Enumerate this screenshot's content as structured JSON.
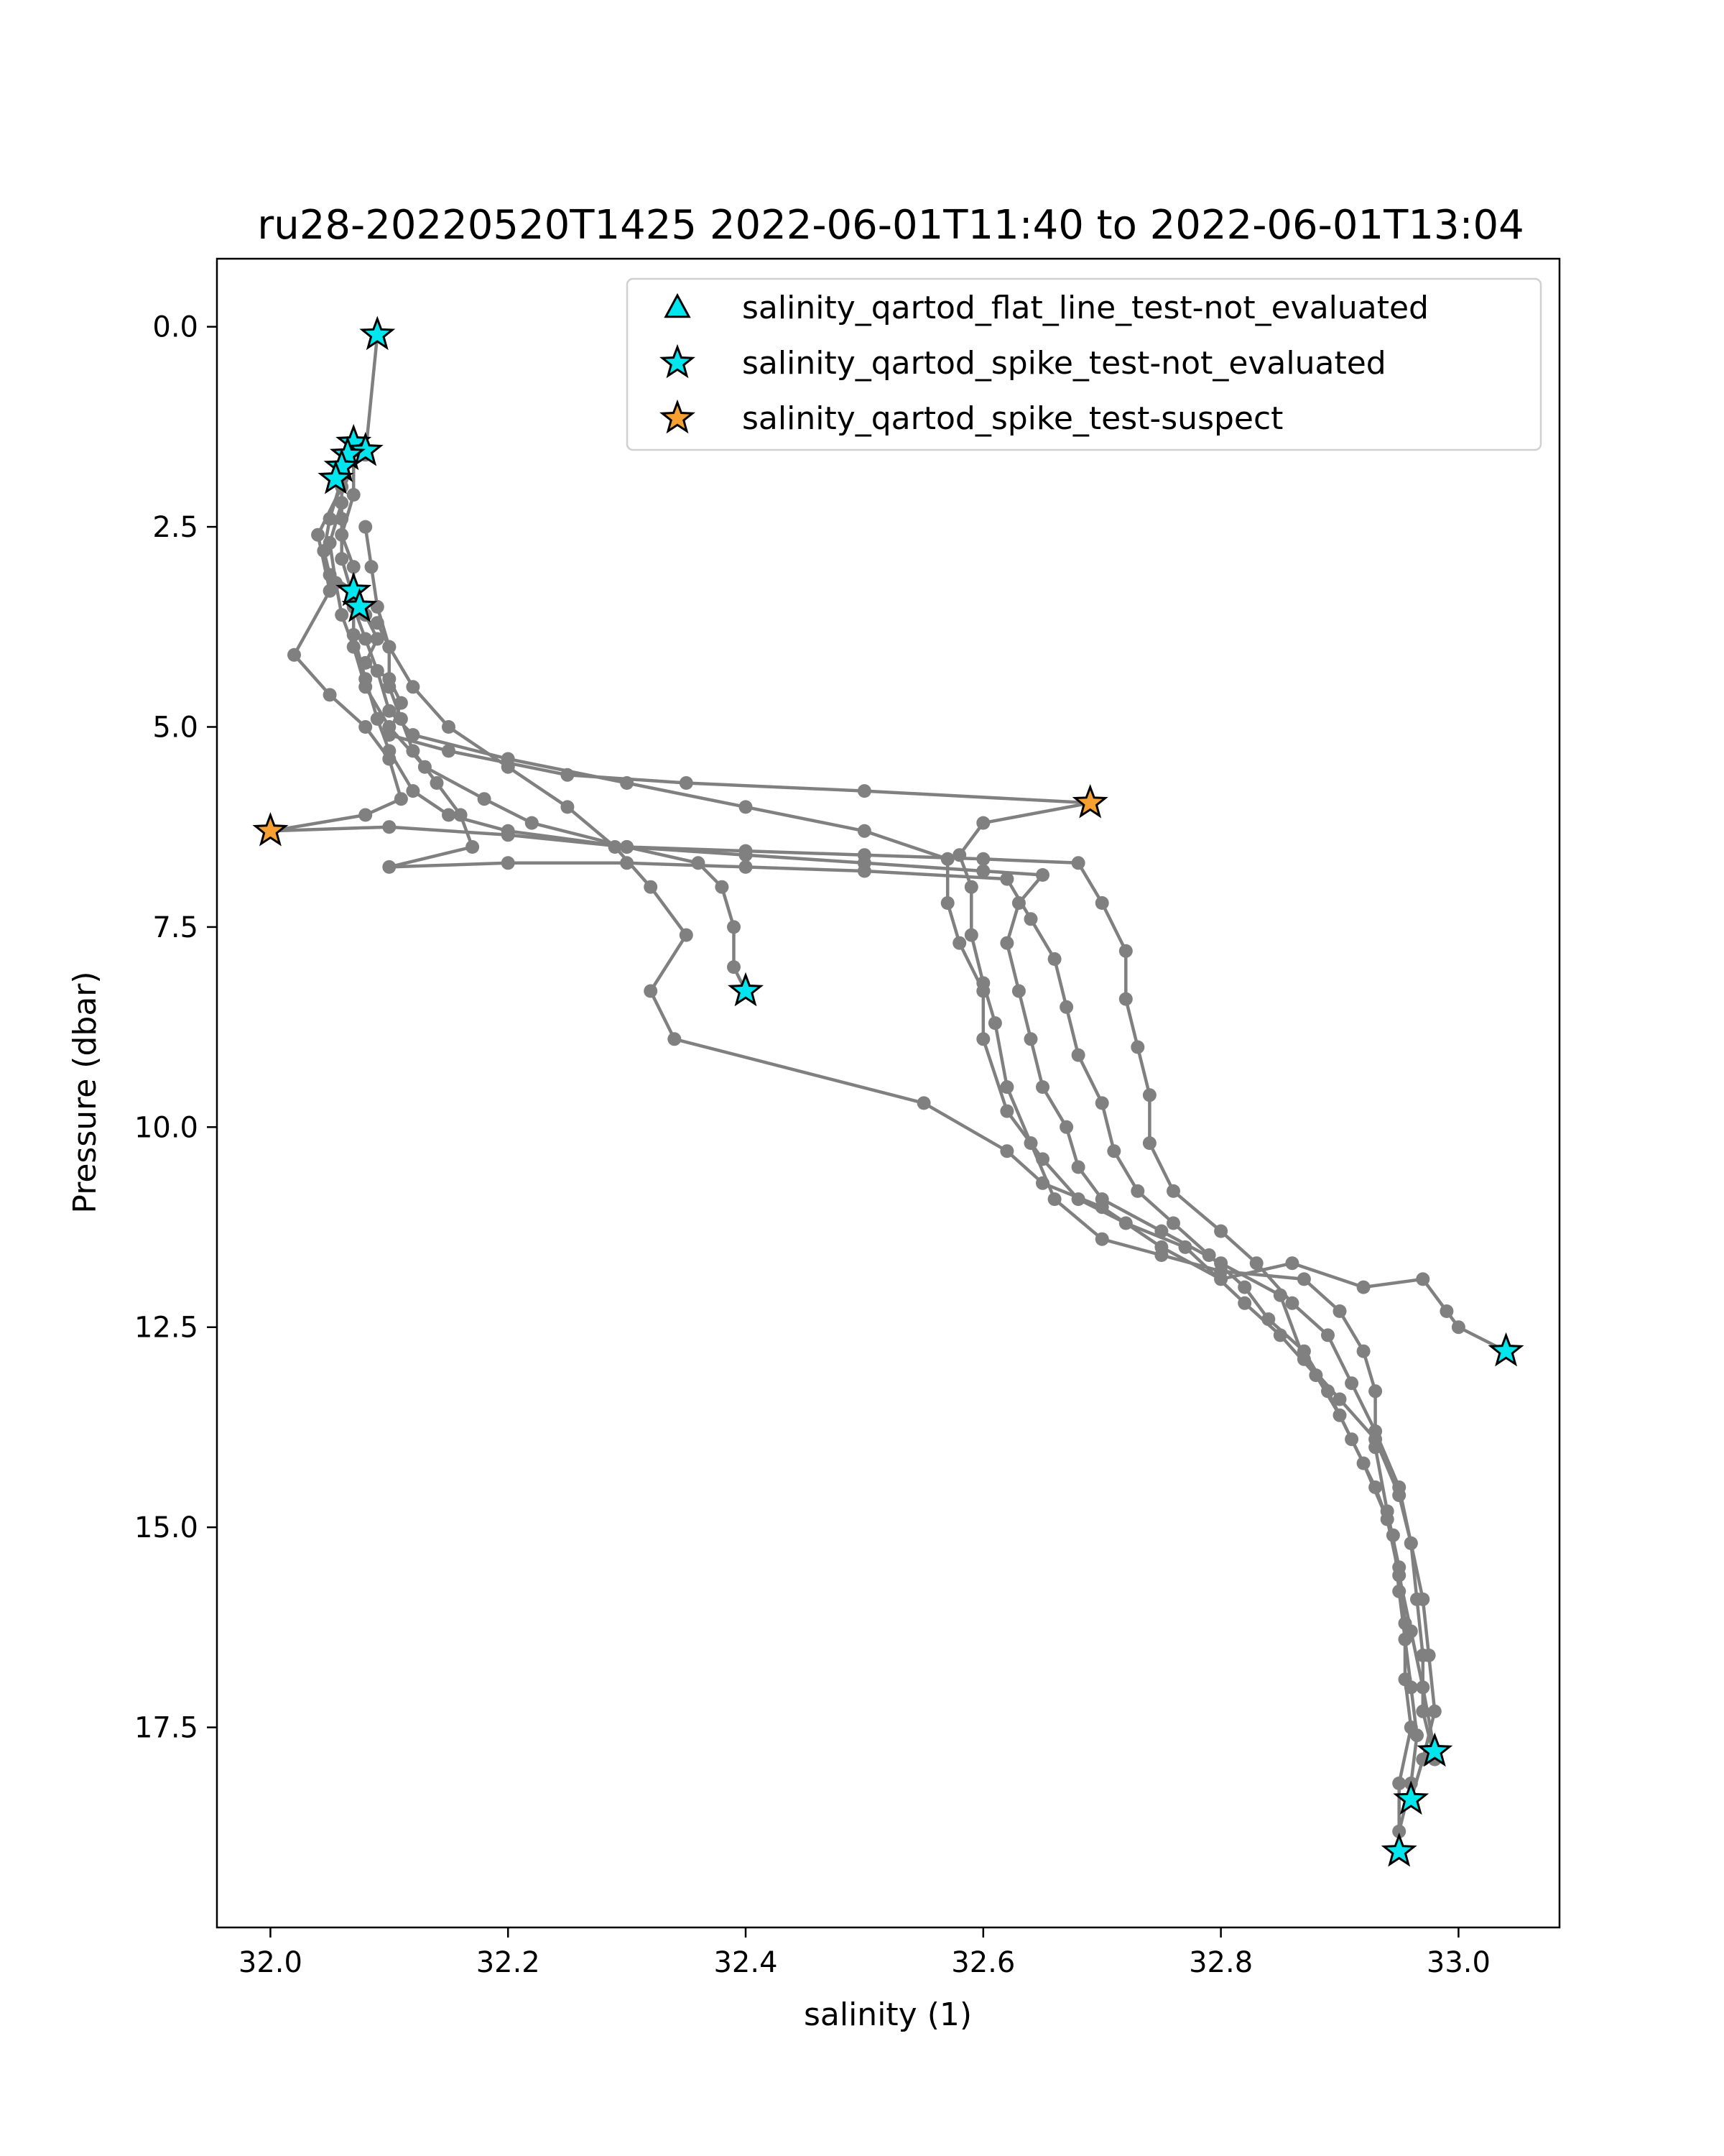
{
  "chart_data": {
    "type": "scatter",
    "title": "ru28-20220520T1425 2022-06-01T11:40 to 2022-06-01T13:04",
    "xlabel": "salinity (1)",
    "ylabel": "Pressure (dbar)",
    "xlim": [
      31.955,
      33.085
    ],
    "ylim": [
      20.0,
      -0.85
    ],
    "y_inverted": true,
    "grid": false,
    "legend_position": "top-right",
    "xticks": [
      "32.0",
      "32.2",
      "32.4",
      "32.6",
      "32.8",
      "33.0"
    ],
    "xtick_values": [
      32.0,
      32.2,
      32.4,
      32.6,
      32.8,
      33.0
    ],
    "yticks": [
      "0.0",
      "2.5",
      "5.0",
      "7.5",
      "10.0",
      "12.5",
      "15.0",
      "17.5"
    ],
    "ytick_values": [
      0.0,
      2.5,
      5.0,
      7.5,
      10.0,
      12.5,
      15.0,
      17.5
    ],
    "colors": {
      "profile_line": "#808080",
      "not_evaluated": "#00e5ee",
      "suspect": "#f5a030",
      "marker_edge": "#000000"
    },
    "series": [
      {
        "name": "profile",
        "style": "line-with-dots",
        "segments": [
          [
            [
              32.09,
              0.1
            ],
            [
              32.08,
              1.6
            ],
            [
              32.07,
              1.5
            ],
            [
              32.06,
              1.9
            ],
            [
              32.05,
              2.4
            ],
            [
              32.045,
              2.8
            ],
            [
              32.05,
              3.1
            ],
            [
              32.07,
              3.3
            ],
            [
              32.08,
              3.6
            ],
            [
              32.09,
              3.9
            ],
            [
              32.08,
              4.2
            ],
            [
              32.1,
              4.4
            ],
            [
              32.11,
              4.7
            ],
            [
              32.1,
              5.1
            ],
            [
              32.15,
              5.3
            ],
            [
              32.25,
              5.6
            ],
            [
              32.35,
              5.7
            ],
            [
              32.5,
              5.8
            ],
            [
              32.69,
              5.95
            ],
            [
              32.6,
              6.2
            ],
            [
              32.58,
              6.6
            ],
            [
              32.59,
              7.0
            ],
            [
              32.59,
              7.6
            ],
            [
              32.6,
              8.2
            ],
            [
              32.61,
              8.7
            ],
            [
              32.62,
              9.5
            ],
            [
              32.64,
              10.2
            ],
            [
              32.66,
              10.9
            ],
            [
              32.7,
              11.4
            ],
            [
              32.75,
              11.6
            ],
            [
              32.8,
              11.8
            ],
            [
              32.87,
              11.9
            ],
            [
              32.9,
              12.3
            ],
            [
              32.92,
              12.8
            ],
            [
              32.93,
              13.3
            ],
            [
              32.93,
              14.0
            ],
            [
              32.94,
              14.8
            ],
            [
              32.95,
              15.5
            ],
            [
              32.955,
              16.2
            ],
            [
              32.955,
              16.9
            ],
            [
              32.96,
              17.5
            ],
            [
              32.95,
              18.2
            ],
            [
              32.95,
              19.05
            ]
          ],
          [
            [
              32.07,
              1.55
            ],
            [
              32.07,
              2.1
            ],
            [
              32.06,
              2.6
            ],
            [
              32.07,
              3.0
            ],
            [
              32.07,
              3.5
            ],
            [
              32.08,
              3.9
            ],
            [
              32.09,
              4.3
            ],
            [
              32.1,
              4.8
            ],
            [
              32.12,
              5.1
            ],
            [
              32.2,
              5.4
            ],
            [
              32.3,
              5.7
            ],
            [
              32.4,
              6.0
            ],
            [
              32.5,
              6.3
            ],
            [
              32.57,
              6.65
            ],
            [
              32.57,
              7.2
            ],
            [
              32.58,
              7.7
            ],
            [
              32.6,
              8.3
            ],
            [
              32.6,
              8.9
            ],
            [
              32.62,
              9.8
            ],
            [
              32.65,
              10.4
            ],
            [
              32.68,
              10.9
            ],
            [
              32.72,
              11.2
            ],
            [
              32.77,
              11.5
            ],
            [
              32.82,
              12.2
            ],
            [
              32.85,
              12.6
            ],
            [
              32.88,
              13.1
            ],
            [
              32.9,
              13.6
            ],
            [
              32.92,
              14.2
            ],
            [
              32.94,
              14.9
            ],
            [
              32.95,
              15.6
            ],
            [
              32.96,
              16.3
            ],
            [
              32.97,
              17.0
            ],
            [
              32.98,
              17.8
            ]
          ],
          [
            [
              32.06,
              1.9
            ],
            [
              32.06,
              2.4
            ],
            [
              32.06,
              2.9
            ],
            [
              32.07,
              3.4
            ],
            [
              32.07,
              3.85
            ],
            [
              32.08,
              4.4
            ],
            [
              32.09,
              4.9
            ],
            [
              32.1,
              5.3
            ],
            [
              32.12,
              5.8
            ],
            [
              32.15,
              6.1
            ],
            [
              32.2,
              6.3
            ],
            [
              32.3,
              6.5
            ],
            [
              32.4,
              6.6
            ],
            [
              32.5,
              6.7
            ],
            [
              32.6,
              6.8
            ],
            [
              32.65,
              6.85
            ],
            [
              32.63,
              7.2
            ],
            [
              32.62,
              7.7
            ],
            [
              32.63,
              8.3
            ],
            [
              32.64,
              8.9
            ],
            [
              32.65,
              9.5
            ],
            [
              32.67,
              10.0
            ],
            [
              32.68,
              10.5
            ],
            [
              32.7,
              10.9
            ],
            [
              32.75,
              11.3
            ],
            [
              32.8,
              11.7
            ],
            [
              32.85,
              12.1
            ],
            [
              32.87,
              12.9
            ],
            [
              32.9,
              13.4
            ],
            [
              32.93,
              13.9
            ],
            [
              32.95,
              14.6
            ],
            [
              32.96,
              15.2
            ],
            [
              32.97,
              15.9
            ],
            [
              32.975,
              16.6
            ],
            [
              32.98,
              17.3
            ],
            [
              32.97,
              17.9
            ],
            [
              32.96,
              18.4
            ]
          ],
          [
            [
              32.06,
              2.2
            ],
            [
              32.05,
              2.7
            ],
            [
              32.055,
              3.2
            ],
            [
              32.06,
              3.6
            ],
            [
              32.07,
              4.0
            ],
            [
              32.08,
              4.5
            ],
            [
              32.1,
              5.0
            ],
            [
              32.13,
              5.5
            ],
            [
              32.18,
              5.9
            ],
            [
              32.22,
              6.2
            ],
            [
              32.3,
              6.5
            ],
            [
              32.36,
              6.7
            ],
            [
              32.38,
              7.0
            ],
            [
              32.39,
              7.5
            ],
            [
              32.39,
              8.0
            ],
            [
              32.4,
              8.3
            ]
          ],
          [
            [
              32.08,
              2.5
            ],
            [
              32.085,
              3.0
            ],
            [
              32.09,
              3.5
            ],
            [
              32.1,
              4.0
            ],
            [
              32.12,
              4.5
            ],
            [
              32.15,
              5.0
            ],
            [
              32.2,
              5.5
            ],
            [
              32.25,
              6.0
            ],
            [
              32.29,
              6.5
            ],
            [
              32.32,
              7.0
            ],
            [
              32.35,
              7.6
            ],
            [
              32.32,
              8.3
            ],
            [
              32.34,
              8.9
            ],
            [
              32.55,
              9.7
            ],
            [
              32.62,
              10.3
            ],
            [
              32.65,
              10.7
            ],
            [
              32.7,
              11.0
            ],
            [
              32.75,
              11.5
            ],
            [
              32.8,
              11.9
            ],
            [
              32.86,
              11.7
            ],
            [
              32.92,
              12.0
            ],
            [
              32.97,
              11.9
            ],
            [
              32.99,
              12.3
            ],
            [
              33.0,
              12.5
            ],
            [
              33.04,
              12.8
            ]
          ],
          [
            [
              32.06,
              2.0
            ],
            [
              32.04,
              2.6
            ],
            [
              32.05,
              3.3
            ],
            [
              32.02,
              4.1
            ],
            [
              32.05,
              4.6
            ],
            [
              32.08,
              5.0
            ],
            [
              32.1,
              5.4
            ],
            [
              32.11,
              5.9
            ],
            [
              32.08,
              6.1
            ],
            [
              32.0,
              6.3
            ],
            [
              32.1,
              6.25
            ],
            [
              32.2,
              6.35
            ],
            [
              32.3,
              6.5
            ],
            [
              32.4,
              6.55
            ],
            [
              32.5,
              6.6
            ],
            [
              32.6,
              6.65
            ],
            [
              32.68,
              6.7
            ],
            [
              32.7,
              7.2
            ],
            [
              32.72,
              7.8
            ],
            [
              32.72,
              8.4
            ],
            [
              32.73,
              9.0
            ],
            [
              32.74,
              9.6
            ],
            [
              32.74,
              10.2
            ],
            [
              32.76,
              10.8
            ],
            [
              32.8,
              11.3
            ],
            [
              32.83,
              11.7
            ],
            [
              32.86,
              12.2
            ],
            [
              32.89,
              12.6
            ],
            [
              32.91,
              13.2
            ],
            [
              32.93,
              13.8
            ],
            [
              32.95,
              14.5
            ],
            [
              32.96,
              15.2
            ],
            [
              32.965,
              15.9
            ],
            [
              32.97,
              16.6
            ],
            [
              32.97,
              17.3
            ],
            [
              32.98,
              17.9
            ]
          ],
          [
            [
              32.09,
              3.7
            ],
            [
              32.1,
              4.0
            ],
            [
              32.1,
              4.5
            ],
            [
              32.11,
              4.9
            ],
            [
              32.12,
              5.3
            ],
            [
              32.14,
              5.7
            ],
            [
              32.16,
              6.1
            ],
            [
              32.17,
              6.5
            ],
            [
              32.1,
              6.75
            ],
            [
              32.2,
              6.7
            ],
            [
              32.3,
              6.7
            ],
            [
              32.4,
              6.75
            ],
            [
              32.5,
              6.8
            ],
            [
              32.62,
              6.9
            ],
            [
              32.64,
              7.4
            ],
            [
              32.66,
              7.9
            ],
            [
              32.67,
              8.5
            ],
            [
              32.68,
              9.1
            ],
            [
              32.7,
              9.7
            ],
            [
              32.71,
              10.3
            ],
            [
              32.73,
              10.8
            ],
            [
              32.76,
              11.2
            ],
            [
              32.79,
              11.6
            ],
            [
              32.82,
              12.0
            ],
            [
              32.84,
              12.4
            ],
            [
              32.87,
              12.8
            ],
            [
              32.89,
              13.3
            ],
            [
              32.91,
              13.9
            ],
            [
              32.93,
              14.5
            ],
            [
              32.945,
              15.1
            ],
            [
              32.95,
              15.8
            ],
            [
              32.955,
              16.4
            ],
            [
              32.96,
              17.0
            ],
            [
              32.965,
              17.6
            ],
            [
              32.96,
              18.2
            ],
            [
              32.95,
              18.8
            ]
          ]
        ]
      },
      {
        "name": "salinity_qartod_flat_line_test-not_evaluated",
        "marker": "triangle",
        "color": "#00e5ee",
        "points": []
      },
      {
        "name": "salinity_qartod_spike_test-not_evaluated",
        "marker": "star",
        "color": "#00e5ee",
        "points": [
          [
            32.09,
            0.1
          ],
          [
            32.07,
            1.45
          ],
          [
            32.08,
            1.55
          ],
          [
            32.065,
            1.6
          ],
          [
            32.06,
            1.75
          ],
          [
            32.055,
            1.9
          ],
          [
            32.07,
            3.3
          ],
          [
            32.075,
            3.5
          ],
          [
            32.4,
            8.3
          ],
          [
            33.04,
            12.8
          ],
          [
            32.98,
            17.8
          ],
          [
            32.96,
            18.4
          ],
          [
            32.95,
            19.05
          ]
        ]
      },
      {
        "name": "salinity_qartod_spike_test-suspect",
        "marker": "star",
        "color": "#f5a030",
        "points": [
          [
            32.69,
            5.95
          ],
          [
            32.0,
            6.3
          ]
        ]
      }
    ]
  }
}
